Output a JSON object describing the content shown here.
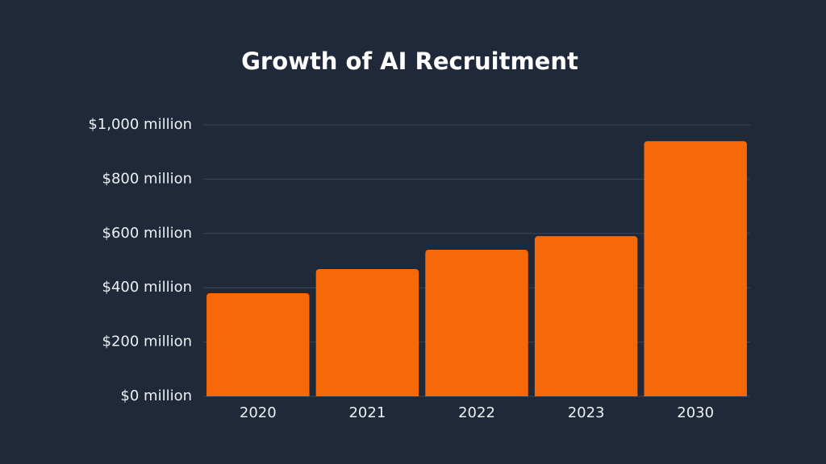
{
  "chart_data": {
    "type": "bar",
    "title": "Growth of AI Recruitment",
    "categories": [
      "2020",
      "2021",
      "2022",
      "2023",
      "2030"
    ],
    "values": [
      380,
      469,
      540,
      590,
      940
    ],
    "color": "#f76808",
    "ylim": [
      0,
      1000
    ],
    "yticks": [
      {
        "value": 0,
        "label": "$0 million"
      },
      {
        "value": 200,
        "label": "$200 million"
      },
      {
        "value": 400,
        "label": "$400 million"
      },
      {
        "value": 600,
        "label": "$600 million"
      },
      {
        "value": 800,
        "label": "$800 million"
      },
      {
        "value": 1000,
        "label": "$1,000 million"
      }
    ],
    "grid": true
  }
}
